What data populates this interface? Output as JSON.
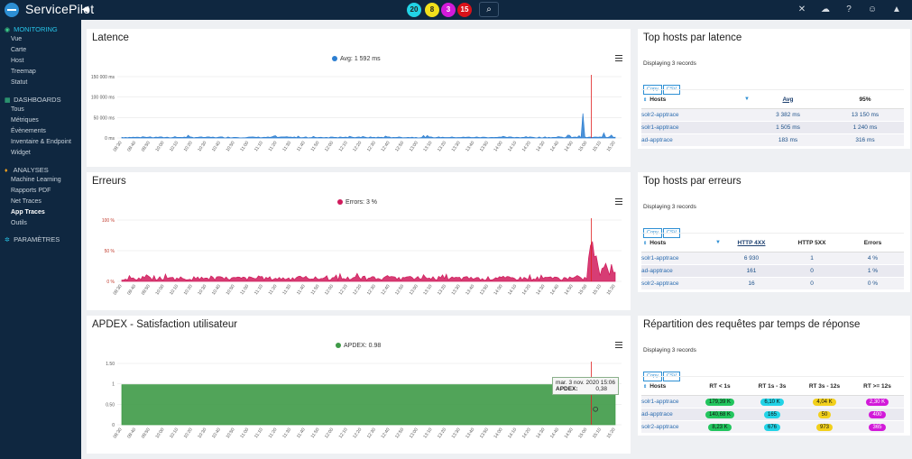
{
  "app": {
    "title": "ServicePilot"
  },
  "top_badges": [
    {
      "count": "20",
      "color": "#22d3e6"
    },
    {
      "count": "8",
      "color": "#f2e01c"
    },
    {
      "count": "3",
      "color": "#d21ad9"
    },
    {
      "count": "15",
      "color": "#d9121a"
    }
  ],
  "top_icons": [
    "fullscreen-icon",
    "cloud-icon",
    "help-icon",
    "smiley-icon",
    "user-icon"
  ],
  "sidebar": {
    "sections": [
      {
        "label": "MONITORING",
        "icon": "eye-icon",
        "items": [
          "Vue",
          "Carte",
          "Host",
          "Treemap",
          "Statut"
        ]
      },
      {
        "label": "DASHBOARDS",
        "icon": "dashboard-icon",
        "items": [
          "Tous",
          "Métriques",
          "Évènements",
          "Inventaire & Endpoint",
          "Widget"
        ]
      },
      {
        "label": "ANALYSES",
        "icon": "bulb-icon",
        "items": [
          "Machine Learning",
          "Rapports PDF",
          "Net Traces",
          "App Traces",
          "Outils"
        ]
      },
      {
        "label": "PARAMÈTRES",
        "icon": "gears-icon",
        "items": []
      }
    ],
    "active_item": "App Traces"
  },
  "time_labels": [
    "09:30",
    "09:40",
    "09:50",
    "10:00",
    "10:10",
    "10:20",
    "10:30",
    "10:40",
    "10:50",
    "11:00",
    "11:10",
    "11:20",
    "11:30",
    "11:40",
    "11:50",
    "12:00",
    "12:10",
    "12:20",
    "12:30",
    "12:40",
    "12:50",
    "13:00",
    "13:10",
    "13:20",
    "13:30",
    "13:40",
    "13:50",
    "14:00",
    "14:10",
    "14:20",
    "14:30",
    "14:40",
    "14:50",
    "15:00",
    "15:10",
    "15:20"
  ],
  "charts": {
    "latence": {
      "title": "Latence",
      "legend": "Avg: 1 592 ms",
      "color": "#2d7fd1",
      "yticks": [
        "150 000 ms",
        "100 000 ms",
        "50 000 ms",
        "0 ms"
      ]
    },
    "erreurs": {
      "title": "Erreurs",
      "legend": "Errors: 3 %",
      "color": "#d01b5c",
      "yticks": [
        "100 %",
        "50 %",
        "0 %"
      ]
    },
    "apdex": {
      "title": "APDEX - Satisfaction utilisateur",
      "legend": "APDEX: 0.98",
      "color": "#3e9a47",
      "yticks": [
        "1.50",
        "1",
        "0.50",
        "0"
      ],
      "tooltip": {
        "date": "mar. 3 nov. 2020 15:06",
        "label": "APDEX:",
        "value": "0,38"
      }
    }
  },
  "chart_data": [
    {
      "type": "area",
      "title": "Latence",
      "ylabel": "ms",
      "ylim": [
        0,
        150000
      ],
      "series": [
        {
          "name": "Avg",
          "baseline": 1500,
          "spikes": [
            {
              "x": "14:47",
              "y": 12000
            },
            {
              "x": "14:57",
              "y": 65000
            },
            {
              "x": "15:12",
              "y": 13000
            },
            {
              "x": "15:17",
              "y": 9000
            }
          ]
        }
      ]
    },
    {
      "type": "area",
      "title": "Erreurs",
      "ylabel": "%",
      "ylim": [
        0,
        100
      ],
      "series": [
        {
          "name": "Errors",
          "baseline": 4,
          "spikes": [
            {
              "x": "15:02",
              "y": 88
            },
            {
              "x": "15:04",
              "y": 72
            },
            {
              "x": "15:07",
              "y": 60
            }
          ]
        }
      ]
    },
    {
      "type": "area",
      "title": "APDEX - Satisfaction utilisateur",
      "ylim": [
        0,
        1.5
      ],
      "series": [
        {
          "name": "APDEX",
          "baseline": 0.98,
          "points": [
            {
              "x": "15:06",
              "y": 0.38
            }
          ]
        }
      ]
    }
  ],
  "tables": {
    "latence": {
      "title": "Top hosts par latence",
      "records": "Displaying 3 records",
      "buttons": [
        "Copy",
        "CSV"
      ],
      "headers": [
        "Hosts",
        "Avg",
        "95%"
      ],
      "rows": [
        [
          "solr2-apptrace",
          "3 382 ms",
          "13 150 ms"
        ],
        [
          "solr1-apptrace",
          "1 505 ms",
          "1 240 ms"
        ],
        [
          "ad-apptrace",
          "183 ms",
          "316 ms"
        ]
      ]
    },
    "erreurs": {
      "title": "Top hosts par erreurs",
      "records": "Displaying 3 records",
      "buttons": [
        "Copy",
        "CSV"
      ],
      "headers": [
        "Hosts",
        "HTTP 4XX",
        "HTTP 5XX",
        "Errors"
      ],
      "rows": [
        [
          "solr1-apptrace",
          "6 930",
          "1",
          "4 %"
        ],
        [
          "ad-apptrace",
          "161",
          "0",
          "1 %"
        ],
        [
          "solr2-apptrace",
          "16",
          "0",
          "0 %"
        ]
      ]
    },
    "repartition": {
      "title": "Répartition des requêtes par temps de réponse",
      "records": "Displaying 3 records",
      "buttons": [
        "Copy",
        "CSV"
      ],
      "headers": [
        "Hosts",
        "RT < 1s",
        "RT 1s - 3s",
        "RT 3s - 12s",
        "RT >= 12s"
      ],
      "pill_colors": [
        "#22c55e",
        "#22d3e6",
        "#f2d01c",
        "#d21ad9"
      ],
      "rows": [
        [
          "solr1-apptrace",
          "179,39 K",
          "6,10 K",
          "4,04 K",
          "2,30 K"
        ],
        [
          "ad-apptrace",
          "140,68 K",
          "165",
          "50",
          "400"
        ],
        [
          "solr2-apptrace",
          "8,23 K",
          "676",
          "973",
          "365"
        ]
      ]
    }
  }
}
